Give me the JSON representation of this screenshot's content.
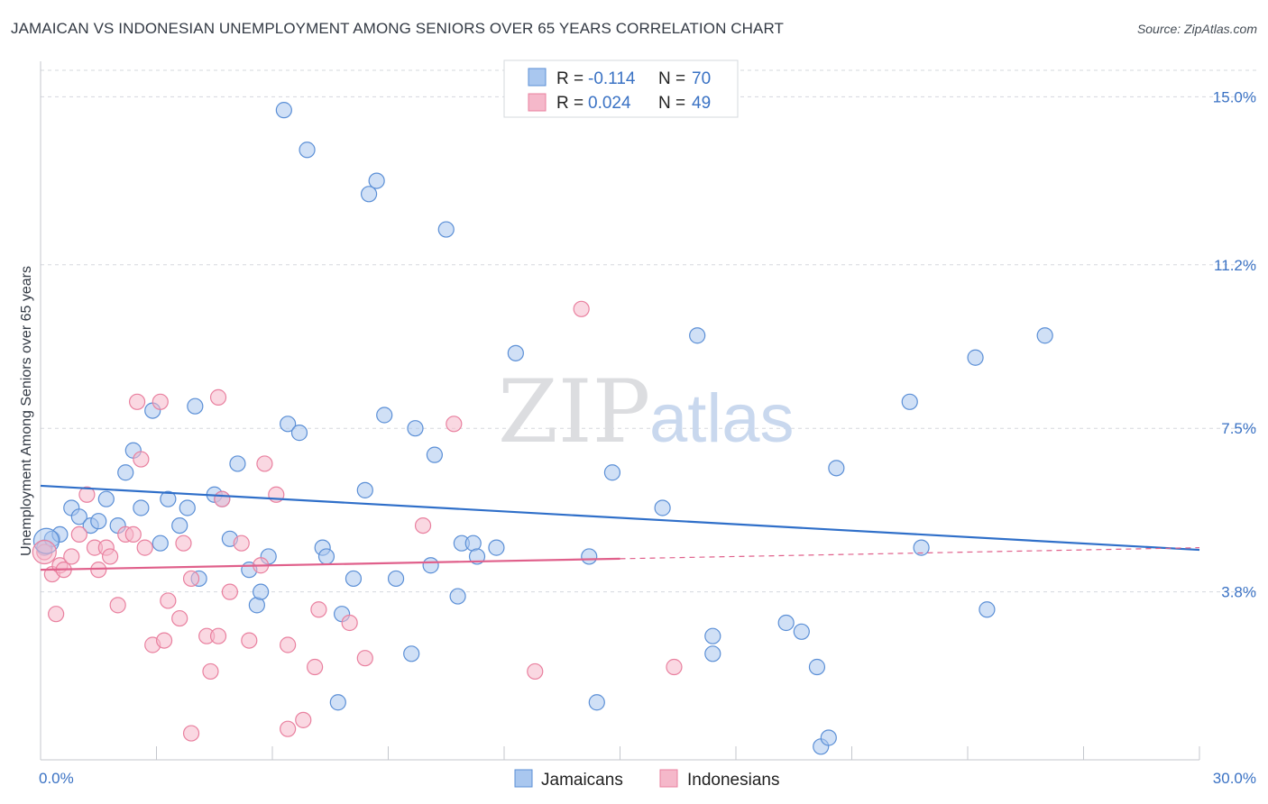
{
  "title": "JAMAICAN VS INDONESIAN UNEMPLOYMENT AMONG SENIORS OVER 65 YEARS CORRELATION CHART",
  "source": "Source: ZipAtlas.com",
  "watermark": {
    "zip": "ZIP",
    "atlas": "atlas"
  },
  "colors": {
    "jamaicans_fill": "#a9c7ef",
    "jamaicans_stroke": "#5b8fd6",
    "jamaicans_line": "#2f6fc9",
    "indonesians_fill": "#f5b8ca",
    "indonesians_stroke": "#e9809f",
    "indonesians_line": "#e0608b",
    "grid": "#d5d8de",
    "axis_text": "#3a72c4"
  },
  "legend": {
    "rows": [
      {
        "r_label": "R =",
        "r_value": "-0.114",
        "n_label": "N =",
        "n_value": "70"
      },
      {
        "r_label": "R =",
        "r_value": "0.024",
        "n_label": "N =",
        "n_value": "49"
      }
    ]
  },
  "bottom_legend": [
    "Jamaicans",
    "Indonesians"
  ],
  "chart_data": {
    "type": "scatter",
    "title": "JAMAICAN VS INDONESIAN UNEMPLOYMENT AMONG SENIORS OVER 65 YEARS CORRELATION CHART",
    "xlabel": "",
    "ylabel": "Unemployment Among Seniors over 65 years",
    "xlim": [
      0,
      30
    ],
    "ylim": [
      0,
      15.6
    ],
    "x_tick_labels": [
      "0.0%",
      "30.0%"
    ],
    "y_ticks": [
      3.8,
      7.5,
      11.2,
      15.0
    ],
    "y_tick_labels": [
      "3.8%",
      "7.5%",
      "11.2%",
      "15.0%"
    ],
    "grid": true,
    "legend_position": "top-center",
    "series": [
      {
        "name": "Jamaicans",
        "r": -0.114,
        "n": 70,
        "trend": {
          "x": [
            0,
            30
          ],
          "y": [
            6.2,
            4.75
          ]
        },
        "points": [
          [
            0.1,
            4.8
          ],
          [
            0.3,
            5.0
          ],
          [
            0.5,
            5.1
          ],
          [
            0.8,
            5.7
          ],
          [
            1.0,
            5.5
          ],
          [
            1.3,
            5.3
          ],
          [
            1.5,
            5.4
          ],
          [
            1.7,
            5.9
          ],
          [
            2.0,
            5.3
          ],
          [
            2.2,
            6.5
          ],
          [
            2.4,
            7.0
          ],
          [
            2.6,
            5.7
          ],
          [
            2.9,
            7.9
          ],
          [
            3.1,
            4.9
          ],
          [
            3.3,
            5.9
          ],
          [
            3.6,
            5.3
          ],
          [
            3.8,
            5.7
          ],
          [
            4.0,
            8.0
          ],
          [
            4.1,
            4.1
          ],
          [
            4.5,
            6.0
          ],
          [
            4.7,
            5.9
          ],
          [
            4.9,
            5.0
          ],
          [
            5.1,
            6.7
          ],
          [
            5.4,
            4.3
          ],
          [
            5.6,
            3.5
          ],
          [
            5.7,
            3.8
          ],
          [
            5.9,
            4.6
          ],
          [
            6.3,
            14.7
          ],
          [
            6.4,
            7.6
          ],
          [
            6.7,
            7.4
          ],
          [
            6.9,
            13.8
          ],
          [
            7.3,
            4.8
          ],
          [
            7.4,
            4.6
          ],
          [
            7.7,
            1.3
          ],
          [
            7.8,
            3.3
          ],
          [
            8.1,
            4.1
          ],
          [
            8.4,
            6.1
          ],
          [
            8.5,
            12.8
          ],
          [
            8.7,
            13.1
          ],
          [
            8.9,
            7.8
          ],
          [
            9.2,
            4.1
          ],
          [
            9.6,
            2.4
          ],
          [
            9.7,
            7.5
          ],
          [
            10.1,
            4.4
          ],
          [
            10.2,
            6.9
          ],
          [
            10.5,
            12.0
          ],
          [
            10.8,
            3.7
          ],
          [
            10.9,
            4.9
          ],
          [
            11.2,
            4.9
          ],
          [
            11.3,
            4.6
          ],
          [
            11.8,
            4.8
          ],
          [
            12.3,
            9.2
          ],
          [
            14.2,
            4.6
          ],
          [
            14.4,
            1.3
          ],
          [
            14.8,
            6.5
          ],
          [
            16.1,
            5.7
          ],
          [
            17.0,
            9.6
          ],
          [
            17.4,
            2.8
          ],
          [
            17.4,
            2.4
          ],
          [
            19.3,
            3.1
          ],
          [
            19.7,
            2.9
          ],
          [
            20.1,
            2.1
          ],
          [
            20.2,
            0.3
          ],
          [
            20.4,
            0.5
          ],
          [
            20.6,
            6.6
          ],
          [
            22.5,
            8.1
          ],
          [
            22.8,
            4.8
          ],
          [
            24.2,
            9.1
          ],
          [
            24.5,
            3.4
          ],
          [
            26.0,
            9.6
          ]
        ]
      },
      {
        "name": "Indonesians",
        "r": 0.024,
        "n": 49,
        "trend": {
          "x": [
            0,
            15
          ],
          "y": [
            4.3,
            4.55
          ]
        },
        "trend_extended": {
          "x": [
            15,
            30
          ],
          "y": [
            4.55,
            4.8
          ]
        },
        "points": [
          [
            0.1,
            4.7
          ],
          [
            0.3,
            4.2
          ],
          [
            0.4,
            3.3
          ],
          [
            0.5,
            4.4
          ],
          [
            0.6,
            4.3
          ],
          [
            0.8,
            4.6
          ],
          [
            1.0,
            5.1
          ],
          [
            1.2,
            6.0
          ],
          [
            1.4,
            4.8
          ],
          [
            1.5,
            4.3
          ],
          [
            1.7,
            4.8
          ],
          [
            1.8,
            4.6
          ],
          [
            2.0,
            3.5
          ],
          [
            2.2,
            5.1
          ],
          [
            2.4,
            5.1
          ],
          [
            2.5,
            8.1
          ],
          [
            2.6,
            6.8
          ],
          [
            2.7,
            4.8
          ],
          [
            2.9,
            2.6
          ],
          [
            3.1,
            8.1
          ],
          [
            3.2,
            2.7
          ],
          [
            3.3,
            3.6
          ],
          [
            3.6,
            3.2
          ],
          [
            3.7,
            4.9
          ],
          [
            3.9,
            4.1
          ],
          [
            3.9,
            0.6
          ],
          [
            4.3,
            2.8
          ],
          [
            4.4,
            2.0
          ],
          [
            4.6,
            2.8
          ],
          [
            4.6,
            8.2
          ],
          [
            4.7,
            5.9
          ],
          [
            4.9,
            3.8
          ],
          [
            5.2,
            4.9
          ],
          [
            5.4,
            2.7
          ],
          [
            5.7,
            4.4
          ],
          [
            5.8,
            6.7
          ],
          [
            6.1,
            6.0
          ],
          [
            6.4,
            2.6
          ],
          [
            6.4,
            0.7
          ],
          [
            6.8,
            0.9
          ],
          [
            7.1,
            2.1
          ],
          [
            7.2,
            3.4
          ],
          [
            8.0,
            3.1
          ],
          [
            8.4,
            2.3
          ],
          [
            9.9,
            5.3
          ],
          [
            10.7,
            7.6
          ],
          [
            12.8,
            2.0
          ],
          [
            14.0,
            10.2
          ],
          [
            16.4,
            2.1
          ]
        ]
      }
    ]
  }
}
